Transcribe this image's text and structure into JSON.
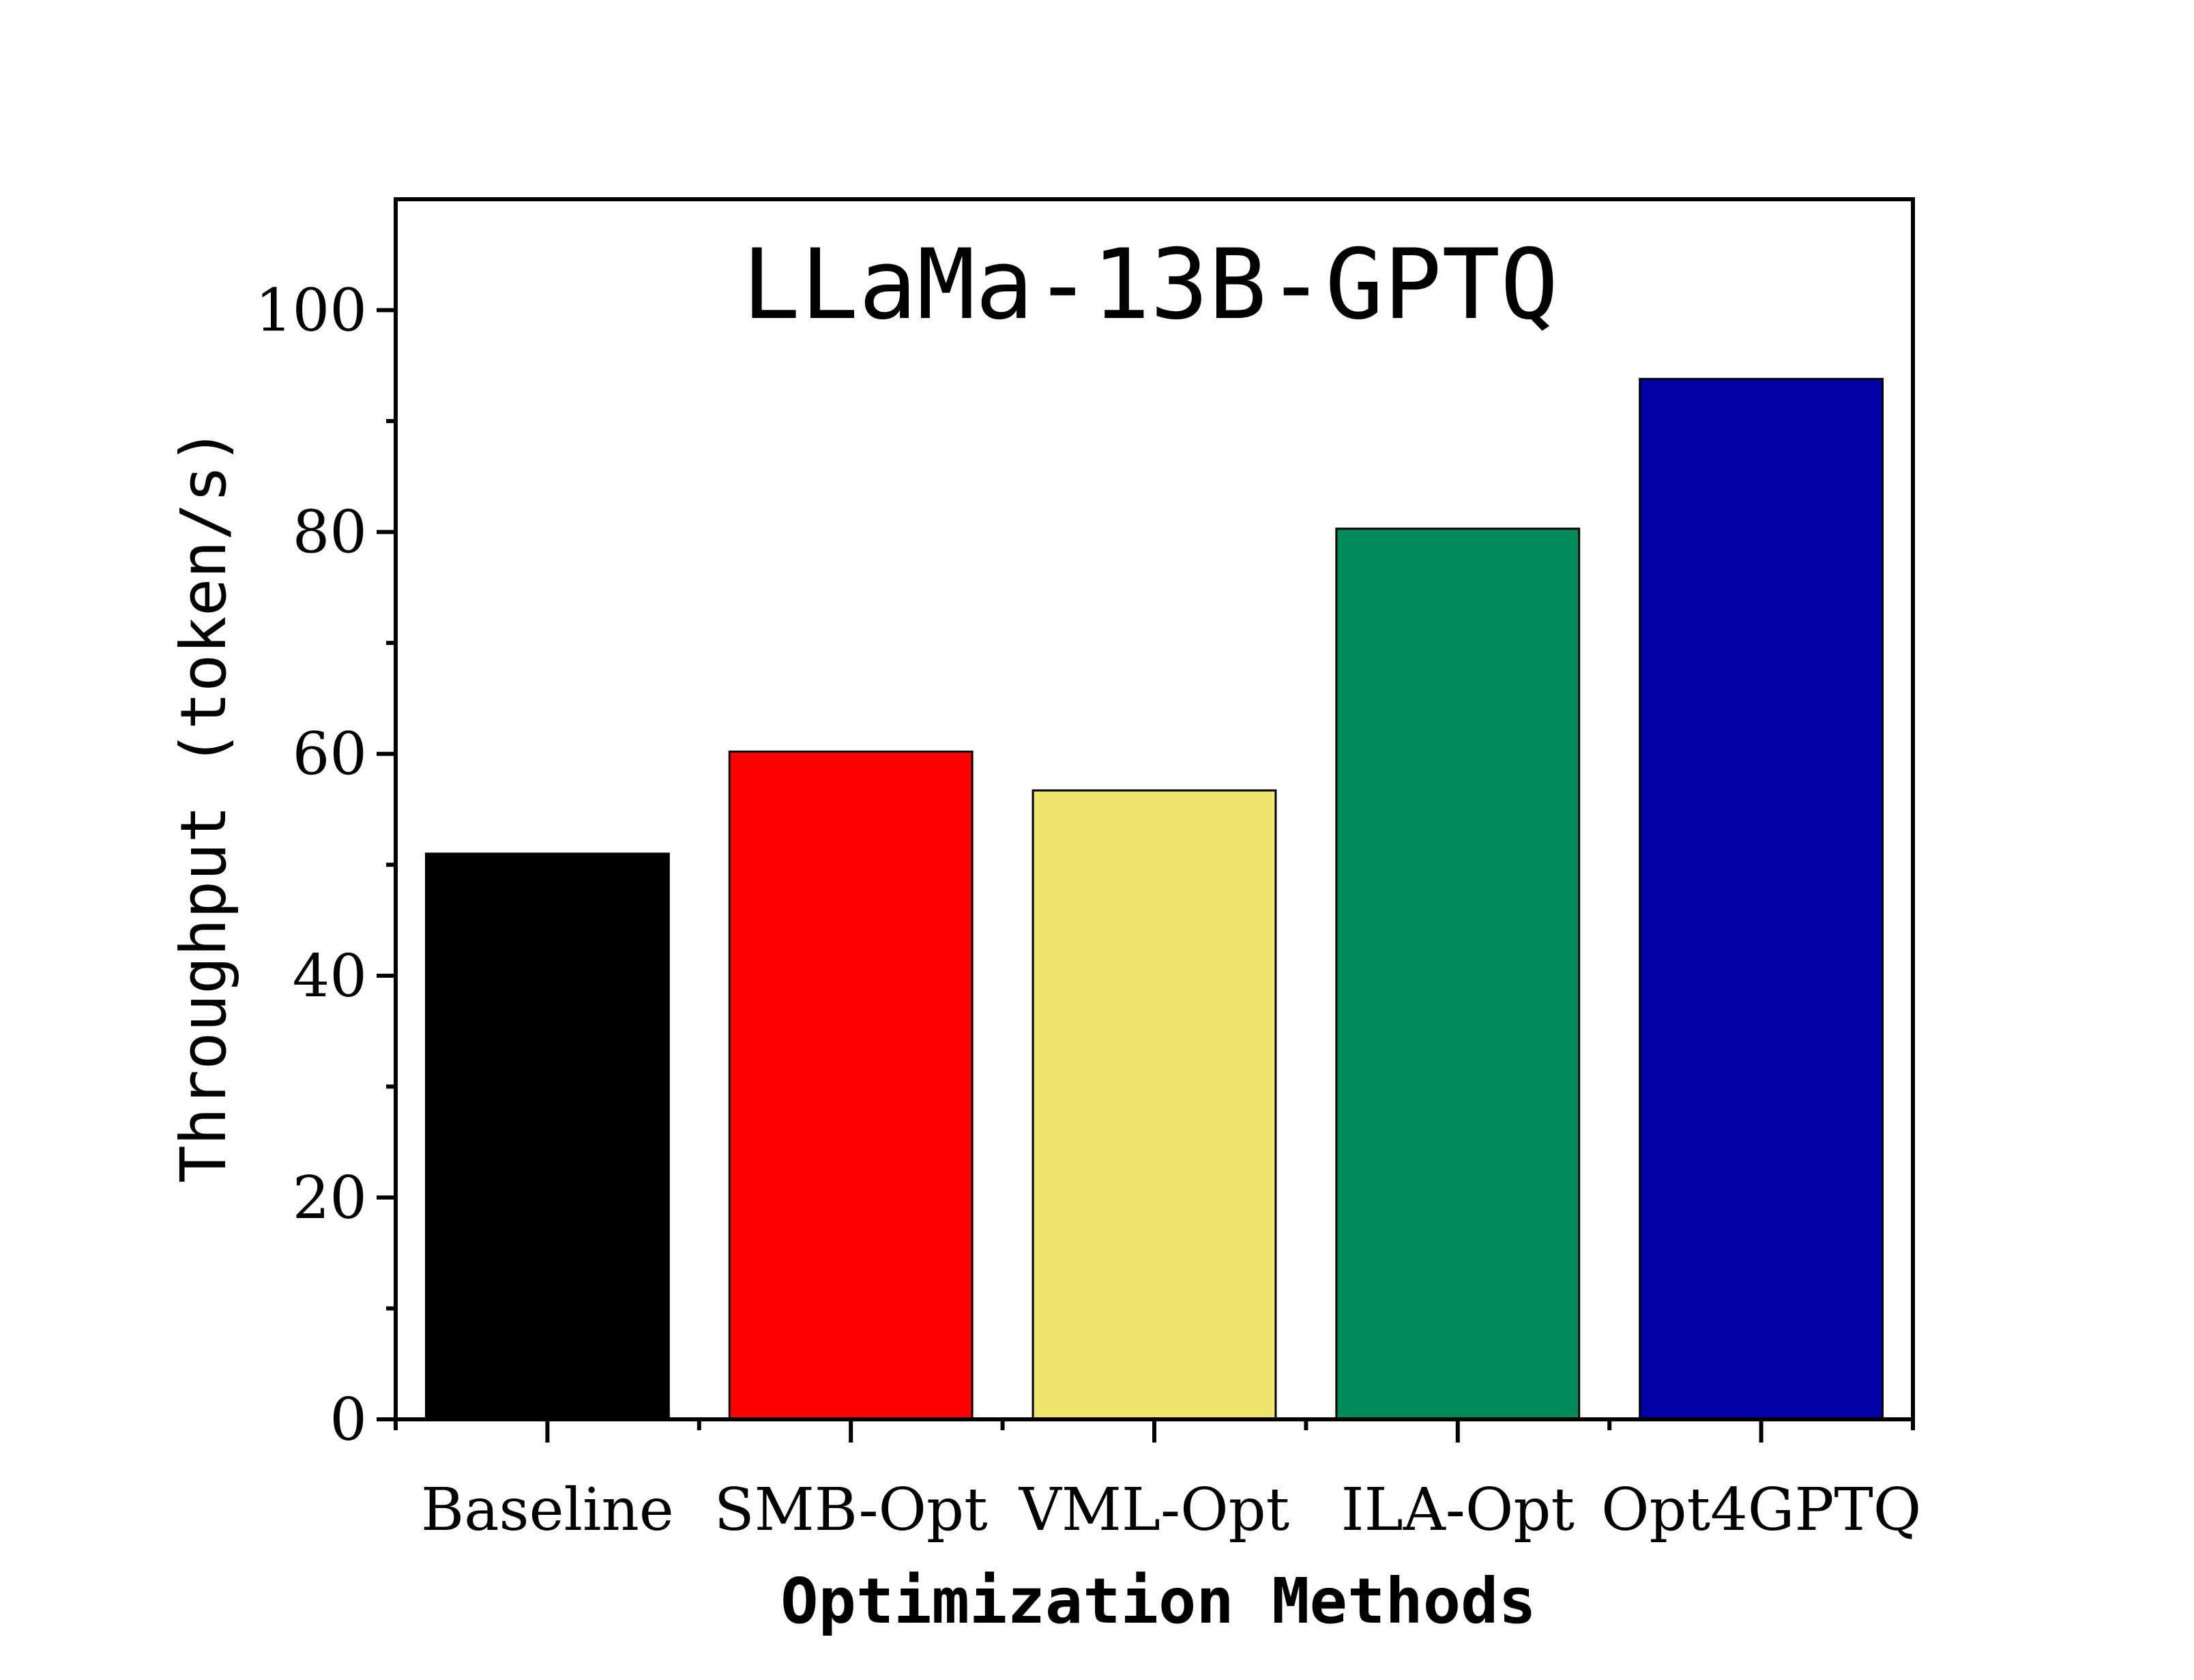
{
  "chart_data": {
    "type": "bar",
    "title": "LLaMa-13B-GPTQ",
    "xlabel": "Optimization Methods",
    "ylabel": "Throughput (token/s)",
    "categories": [
      "Baseline",
      "SMB-Opt",
      "VML-Opt",
      "ILA-Opt",
      "Opt4GPTQ"
    ],
    "values": [
      51,
      60.2,
      56.7,
      80.3,
      93.8
    ],
    "colors": [
      "#000000",
      "#ff0000",
      "#f0e66e",
      "#008b5a",
      "#0000a6"
    ],
    "ylim": [
      0,
      110
    ],
    "yticks": [
      0,
      20,
      40,
      60,
      80,
      100
    ],
    "yticks_minor": [
      10,
      30,
      50,
      70,
      90
    ],
    "grid": false,
    "legend": "none"
  }
}
